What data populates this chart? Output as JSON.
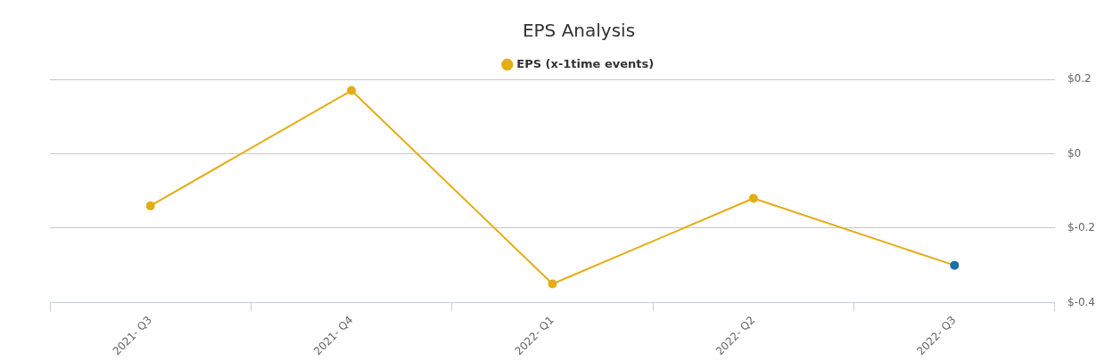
{
  "chart_data": {
    "type": "line",
    "title": "EPS Analysis",
    "categories": [
      "2021- Q3",
      "2021- Q4",
      "2022- Q1",
      "2022- Q2",
      "2022- Q3"
    ],
    "series": [
      {
        "name": "EPS (x-1time events)",
        "color": "#e4ad16",
        "colors": [
          "#e4ad16",
          "#e4ad16",
          "#e4ad16",
          "#e4ad16",
          "#1f6fa8"
        ],
        "values": [
          -0.14,
          0.17,
          -0.35,
          -0.12,
          -0.3
        ]
      }
    ],
    "ylim": [
      -0.4,
      0.2
    ],
    "yticks": [
      {
        "value": -0.4,
        "label": "$-0.4"
      },
      {
        "value": -0.2,
        "label": "$-0.2"
      },
      {
        "value": 0,
        "label": "$0"
      },
      {
        "value": 0.2,
        "label": "$0.2"
      }
    ],
    "grid": "y",
    "legend": "top",
    "marker": "circle",
    "line_style": "solid"
  }
}
